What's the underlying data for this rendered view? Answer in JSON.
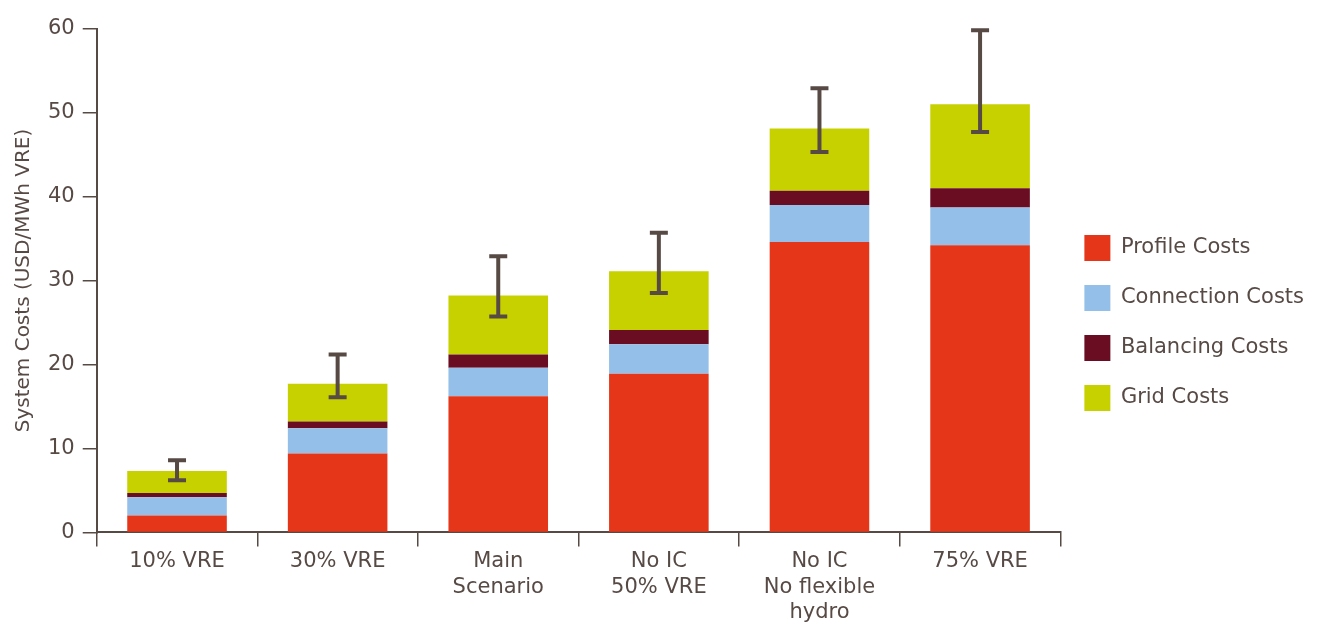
{
  "chart_data": {
    "type": "bar",
    "stacked": true,
    "ylabel": "System Costs (USD/MWh VRE)",
    "categories": [
      "10% VRE",
      "30% VRE",
      "Main\nScenario",
      "No IC\n50% VRE",
      "No IC\nNo flexible\nhydro",
      "75% VRE"
    ],
    "series": [
      {
        "name": "Profile Costs",
        "color": "#e5361a",
        "values": [
          2.0,
          9.4,
          16.2,
          18.9,
          34.6,
          34.2
        ]
      },
      {
        "name": "Connection Costs",
        "color": "#94bfe8",
        "values": [
          2.2,
          3.0,
          3.4,
          3.5,
          4.4,
          4.5
        ]
      },
      {
        "name": "Balancing Costs",
        "color": "#6b0d22",
        "values": [
          0.5,
          0.8,
          1.6,
          1.7,
          1.7,
          2.3
        ]
      },
      {
        "name": "Grid Costs",
        "color": "#c7d100",
        "values": [
          2.6,
          4.5,
          7.0,
          7.0,
          7.4,
          10.0
        ],
        "errors": [
          [
            6.2,
            8.6
          ],
          [
            16.1,
            21.2
          ],
          [
            25.7,
            32.9
          ],
          [
            28.5,
            35.7
          ],
          [
            45.3,
            52.9
          ],
          [
            47.7,
            59.8
          ]
        ]
      }
    ],
    "ylim": [
      0,
      60
    ],
    "yticks": [
      0,
      10,
      20,
      30,
      40,
      50,
      60
    ],
    "grid": false,
    "legend": "right"
  }
}
